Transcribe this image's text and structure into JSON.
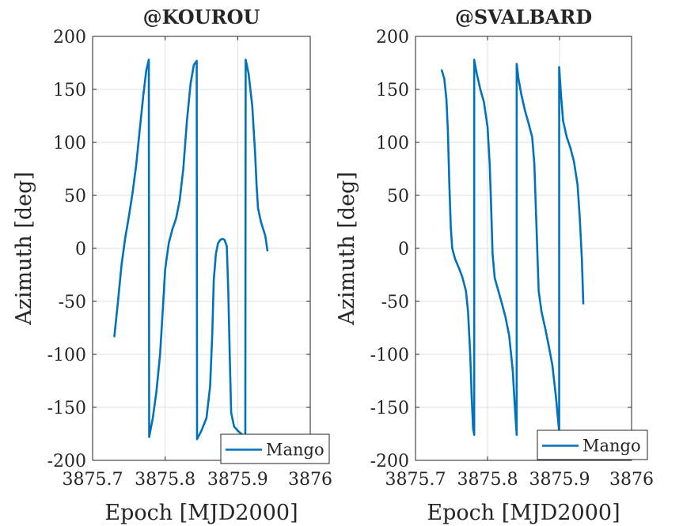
{
  "chart_data": [
    {
      "type": "line",
      "title": "@KOUROU",
      "xlabel": "Epoch [MJD2000]",
      "ylabel": "Azimuth [deg]",
      "xlim": [
        3875.7,
        3876
      ],
      "ylim": [
        -200,
        200
      ],
      "xticks": [
        3875.7,
        3875.8,
        3875.9,
        3876
      ],
      "yticks": [
        200,
        150,
        100,
        50,
        0,
        -50,
        -100,
        -150,
        -200
      ],
      "xtick_labels": [
        "3875.7",
        "3875.8",
        "3875.9",
        "3876"
      ],
      "ytick_labels": [
        "200",
        "150",
        "100",
        "50",
        "0",
        "-50",
        "-100",
        "-150",
        "-200"
      ],
      "grid": true,
      "legend_position": "bottom-right",
      "series": [
        {
          "name": "Mango",
          "color": "#0072bd",
          "segments": [
            [
              [
                3875.73,
                -83
              ],
              [
                3875.735,
                -50
              ],
              [
                3875.74,
                -15
              ],
              [
                3875.745,
                10
              ],
              [
                3875.75,
                30
              ],
              [
                3875.755,
                52
              ],
              [
                3875.76,
                78
              ],
              [
                3875.765,
                112
              ],
              [
                3875.77,
                145
              ],
              [
                3875.774,
                168
              ],
              [
                3875.7775,
                178
              ]
            ],
            [
              [
                3875.778,
                -178
              ],
              [
                3875.783,
                -160
              ],
              [
                3875.788,
                -135
              ],
              [
                3875.793,
                -100
              ],
              [
                3875.797,
                -55
              ],
              [
                3875.8,
                -20
              ],
              [
                3875.805,
                5
              ],
              [
                3875.81,
                18
              ],
              [
                3875.815,
                28
              ],
              [
                3875.82,
                45
              ],
              [
                3875.825,
                75
              ],
              [
                3875.83,
                120
              ],
              [
                3875.835,
                155
              ],
              [
                3875.8395,
                173
              ],
              [
                3875.8435,
                177
              ]
            ],
            [
              [
                3875.844,
                -180
              ],
              [
                3875.85,
                -172
              ],
              [
                3875.857,
                -160
              ],
              [
                3875.862,
                -130
              ],
              [
                3875.865,
                -80
              ],
              [
                3875.867,
                -30
              ],
              [
                3875.87,
                -5
              ],
              [
                3875.873,
                5
              ],
              [
                3875.876,
                8
              ],
              [
                3875.879,
                9
              ],
              [
                3875.882,
                8
              ],
              [
                3875.885,
                2
              ],
              [
                3875.887,
                -40
              ],
              [
                3875.889,
                -100
              ],
              [
                3875.891,
                -155
              ],
              [
                3875.895,
                -168
              ],
              [
                3875.9,
                -172
              ],
              [
                3875.905,
                -175
              ],
              [
                3875.9105,
                -178
              ]
            ],
            [
              [
                3875.911,
                178
              ],
              [
                3875.915,
                165
              ],
              [
                3875.92,
                135
              ],
              [
                3875.924,
                90
              ],
              [
                3875.926,
                60
              ],
              [
                3875.928,
                38
              ],
              [
                3875.932,
                25
              ],
              [
                3875.938,
                12
              ],
              [
                3875.941,
                -2
              ]
            ]
          ]
        }
      ]
    },
    {
      "type": "line",
      "title": "@SVALBARD",
      "xlabel": "Epoch [MJD2000]",
      "ylabel": "Azimuth [deg]",
      "xlim": [
        3875.7,
        3876
      ],
      "ylim": [
        -200,
        200
      ],
      "xticks": [
        3875.7,
        3875.8,
        3875.9,
        3876
      ],
      "yticks": [
        200,
        150,
        100,
        50,
        0,
        -50,
        -100,
        -150,
        -200
      ],
      "xtick_labels": [
        "3875.7",
        "3875.8",
        "3875.9",
        "3876"
      ],
      "ytick_labels": [
        "200",
        "150",
        "100",
        "50",
        "0",
        "-50",
        "-100",
        "-150",
        "-200"
      ],
      "grid": true,
      "legend_position": "bottom-right",
      "series": [
        {
          "name": "Mango",
          "color": "#0072bd",
          "segments": [
            [
              [
                3875.7365,
                168
              ],
              [
                3875.74,
                160
              ],
              [
                3875.743,
                140
              ],
              [
                3875.745,
                110
              ],
              [
                3875.747,
                60
              ],
              [
                3875.749,
                20
              ],
              [
                3875.751,
                0
              ],
              [
                3875.755,
                -10
              ],
              [
                3875.76,
                -18
              ],
              [
                3875.765,
                -27
              ],
              [
                3875.77,
                -40
              ],
              [
                3875.773,
                -60
              ],
              [
                3875.776,
                -100
              ],
              [
                3875.778,
                -140
              ],
              [
                3875.78,
                -170
              ],
              [
                3875.7815,
                -176
              ]
            ],
            [
              [
                3875.7815,
                178
              ],
              [
                3875.785,
                165
              ],
              [
                3875.79,
                150
              ],
              [
                3875.795,
                138
              ],
              [
                3875.8,
                115
              ],
              [
                3875.803,
                80
              ],
              [
                3875.805,
                40
              ],
              [
                3875.807,
                -5
              ],
              [
                3875.81,
                -28
              ],
              [
                3875.815,
                -40
              ],
              [
                3875.82,
                -52
              ],
              [
                3875.825,
                -65
              ],
              [
                3875.83,
                -82
              ],
              [
                3875.835,
                -115
              ],
              [
                3875.838,
                -150
              ],
              [
                3875.8405,
                -176
              ]
            ],
            [
              [
                3875.8405,
                174
              ],
              [
                3875.843,
                160
              ],
              [
                3875.847,
                145
              ],
              [
                3875.852,
                130
              ],
              [
                3875.857,
                118
              ],
              [
                3875.862,
                105
              ],
              [
                3875.865,
                80
              ],
              [
                3875.867,
                40
              ],
              [
                3875.869,
                0
              ],
              [
                3875.871,
                -40
              ],
              [
                3875.875,
                -60
              ],
              [
                3875.88,
                -75
              ],
              [
                3875.885,
                -92
              ],
              [
                3875.89,
                -110
              ],
              [
                3875.895,
                -140
              ],
              [
                3875.8995,
                -173
              ]
            ],
            [
              [
                3875.8995,
                171
              ],
              [
                3875.902,
                145
              ],
              [
                3875.905,
                120
              ],
              [
                3875.91,
                105
              ],
              [
                3875.915,
                95
              ],
              [
                3875.92,
                82
              ],
              [
                3875.925,
                60
              ],
              [
                3875.928,
                30
              ],
              [
                3875.931,
                -10
              ],
              [
                3875.933,
                -52
              ]
            ]
          ]
        }
      ]
    }
  ]
}
